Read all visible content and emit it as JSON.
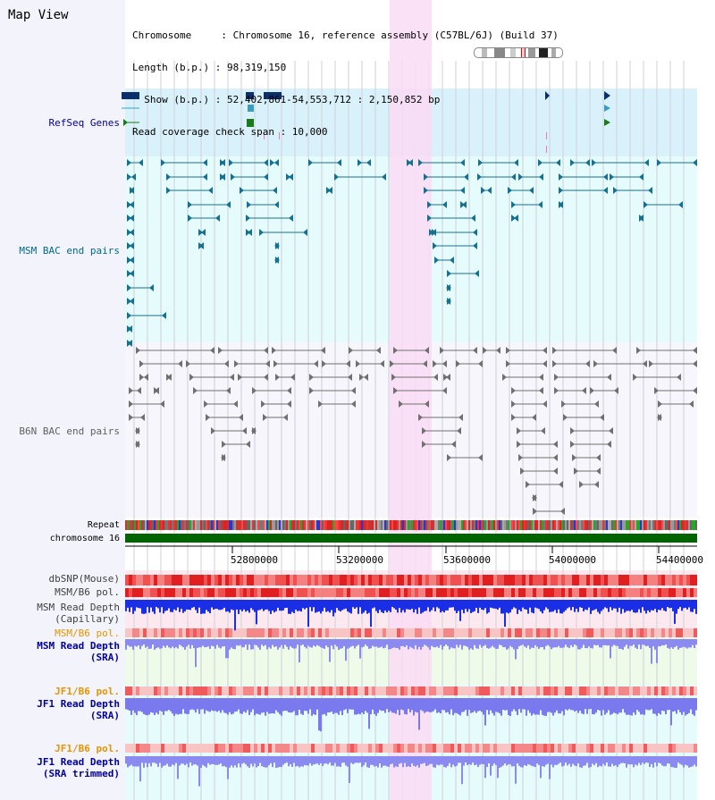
{
  "view_title": "Map View",
  "header": {
    "chromosome_line": "Chromosome     : Chromosome 16, reference assembly (C57BL/6J) (Build 37)",
    "length_line": "Length (b.p.) : 98,319,150",
    "show_line": "  Show (b.p.) : 52,402,861-54,553,712 : 2,150,852 bp",
    "coverage_line": "Read coverage check span : 10,000"
  },
  "tracks": {
    "refseq": "RefSeq Genes",
    "msm_bac": "MSM BAC end pairs",
    "b6n_bac": "B6N BAC end pairs",
    "repeat": "Repeat",
    "chromosome": "chromosome 16",
    "dbsnp": "dbSNP(Mouse)",
    "msm_b6_pol_1": "MSM/B6 pol.",
    "msm_read_depth_cap_1": "MSM Read Depth",
    "msm_read_depth_cap_2": "(Capillary)",
    "msm_b6_pol_2": "MSM/B6 pol.",
    "msm_read_depth_sra_1": "MSM Read Depth",
    "msm_read_depth_sra_2": "(SRA)",
    "jf1_b6_pol_1": "JF1/B6 pol.",
    "jf1_read_depth_sra_1": "JF1 Read Depth",
    "jf1_read_depth_sra_2": "(SRA)",
    "jf1_b6_pol_2": "JF1/B6 pol.",
    "jf1_read_depth_trim_1": "JF1 Read Depth",
    "jf1_read_depth_trim_2": "(SRA trimmed)"
  },
  "axis_ticks": [
    "52800000",
    "53200000",
    "53600000",
    "54000000",
    "54400000"
  ],
  "colors": {
    "refseq_bg": "#d9f1fb",
    "bac_bg": "#e6fbfb",
    "highlight": "#fadcf5",
    "msm_bac": "#15718f",
    "b6n_bac": "#707070",
    "chromosome": "#006400",
    "track_label_blue": "#0000a0",
    "track_label_orange": "#e69500",
    "track_label_teal": "#006a8a"
  },
  "icons": {
    "ideogram": "chromosome-ideogram-icon"
  }
}
